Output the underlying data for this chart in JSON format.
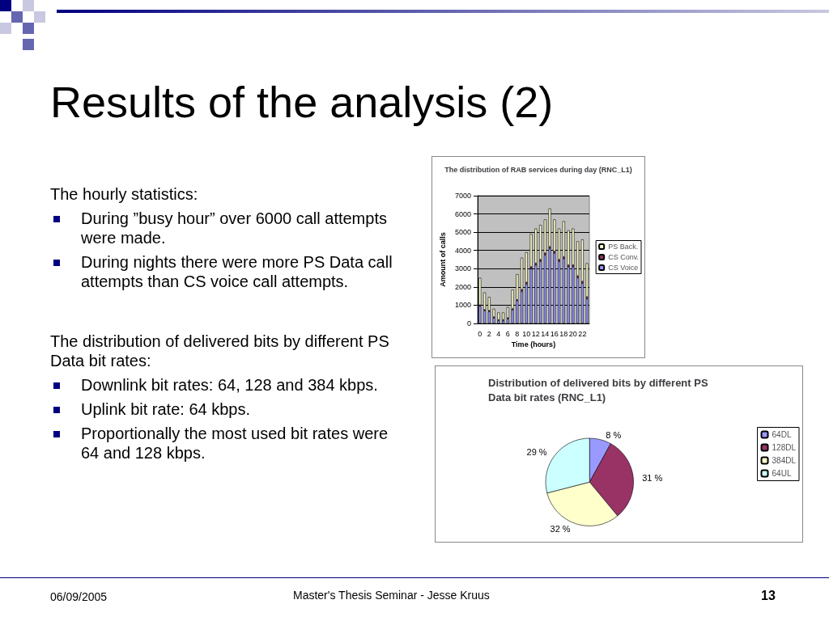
{
  "chart_data": [
    {
      "type": "other",
      "title": "Results of the analysis (2)",
      "subtitle": "The hourly statistics:",
      "annotations": [
        "During ”busy hour” over 6000 call attempts were made.",
        "During nights there were more PS Data call attempts than CS voice call attempts."
      ]
    },
    {
      "type": "other",
      "subtitle": "The distribution of delivered bits by different PS Data bit rates:",
      "annotations": [
        "Downlink bit rates: 64, 128 and 384 kbps.",
        "Uplink bit rate: 64 kbps.",
        "Proportionally the most used bit rates were 64 and 128 kbps."
      ]
    },
    {
      "type": "bar",
      "title": "The distribution of RAB services during day (RNC_L1)",
      "xlabel": "Time (hours)",
      "ylabel": "Amount of calls",
      "categories": [
        "0",
        null,
        "2",
        null,
        "4",
        null,
        "6",
        null,
        "8",
        null,
        "10",
        null,
        "12",
        null,
        "14",
        null,
        "16",
        null,
        "18",
        null,
        "20",
        null,
        "22",
        null
      ],
      "stacked": true,
      "ylim": [
        0,
        7000
      ],
      "yticks": [
        0,
        1000,
        2000,
        3000,
        4000,
        5000,
        6000,
        7000
      ],
      "grid": "y",
      "legend": "right",
      "series": [
        {
          "name": "CS Voice",
          "color": "#9999ff",
          "values": [
            950,
            700,
            650,
            300,
            150,
            150,
            250,
            750,
            1250,
            1750,
            2150,
            3000,
            3200,
            3400,
            3750,
            4100,
            3850,
            3400,
            3550,
            3100,
            3100,
            2500,
            2200,
            1350
          ]
        },
        {
          "name": "CS Conv.",
          "color": "#993366",
          "values": [
            50,
            50,
            50,
            50,
            50,
            50,
            50,
            50,
            50,
            100,
            100,
            100,
            100,
            100,
            100,
            100,
            100,
            100,
            100,
            100,
            100,
            100,
            100,
            100
          ]
        },
        {
          "name": "PS Back.",
          "color": "#ffffcc",
          "values": [
            1500,
            950,
            750,
            450,
            400,
            400,
            600,
            1050,
            1400,
            1750,
            1650,
            1800,
            1900,
            1900,
            1850,
            2100,
            1750,
            1700,
            1950,
            1900,
            2000,
            1900,
            2300,
            1850
          ]
        }
      ]
    },
    {
      "type": "pie",
      "title": "Distribution of delivered bits by different PS Data bit rates (RNC_L1)",
      "categories": [
        "64DL",
        "128DL",
        "384DL",
        "64UL"
      ],
      "values": [
        8,
        31,
        32,
        29
      ],
      "colors": [
        "#9999ff",
        "#993366",
        "#ffffcc",
        "#ccffff"
      ],
      "value_labels": [
        "8 %",
        "31 %",
        "32 %",
        "29 %"
      ],
      "legend": "right"
    },
    {
      "type": "other",
      "annotations": [
        "06/09/2005",
        "Master's Thesis Seminar - Jesse Kruus",
        "13"
      ]
    }
  ]
}
